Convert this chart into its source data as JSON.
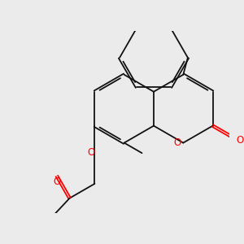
{
  "background_color": "#ebebeb",
  "bond_color": "#111111",
  "oxygen_color": "#ff0000",
  "lw": 1.3,
  "dbl_sep": 0.06,
  "figsize": [
    3.0,
    3.0
  ],
  "dpi": 100,
  "xlim": [
    -2.8,
    3.2
  ],
  "ylim": [
    -2.0,
    2.8
  ]
}
